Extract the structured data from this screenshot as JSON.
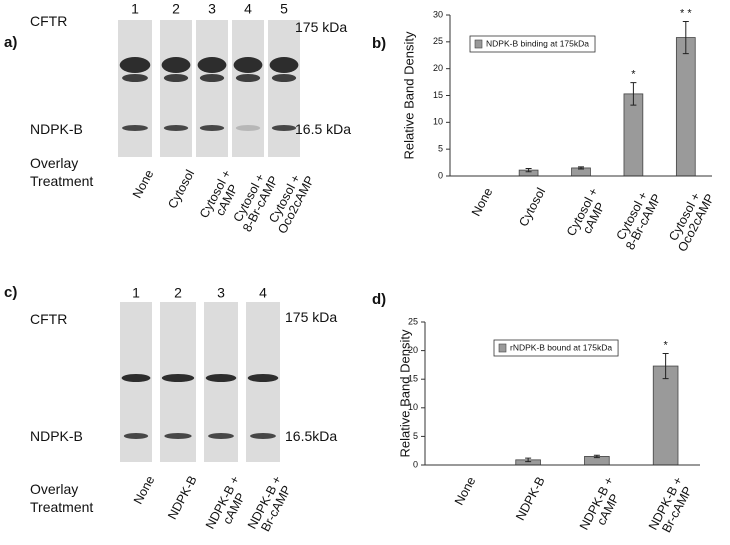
{
  "blots": {
    "a": {
      "panel": "a)",
      "rows": [
        "CFTR",
        "NDPK-B"
      ],
      "markers": [
        "175 kDa",
        "16.5 kDa"
      ],
      "lanes": [
        "1",
        "2",
        "3",
        "4",
        "5"
      ],
      "overlay": "Overlay\nTreatment",
      "treatments": [
        "None",
        "Cytosol",
        "Cytosol +\ncAMP",
        "Cytosol +\n8-Br-cAMP",
        "Cytosol +\nOco2cAMP"
      ]
    },
    "c": {
      "panel": "c)",
      "rows": [
        "CFTR",
        "NDPK-B"
      ],
      "markers": [
        "175 kDa",
        "16.5kDa"
      ],
      "lanes": [
        "1",
        "2",
        "3",
        "4"
      ],
      "overlay": "Overlay\nTreatment",
      "treatments": [
        "None",
        "NDPK-B",
        "NDPK-B +\ncAMP",
        "NDPK-B +\nBr-cAMP"
      ]
    }
  },
  "chart_data": [
    {
      "type": "bar",
      "panel": "b)",
      "ylabel": "Relative Band Density",
      "categories": [
        "None",
        "Cytosol",
        "Cytosol +\ncAMP",
        "Cytosol +\n8-Br-cAMP",
        "Cytosol +\nOco2cAMP"
      ],
      "series": [
        {
          "name": "NDPK-B binding at 175kDa",
          "color": "#9a9a9a",
          "values": [
            0,
            1.1,
            1.5,
            15.3,
            25.8
          ],
          "error": [
            null,
            0.3,
            0.2,
            2.1,
            3.0
          ],
          "bar_labels": [
            null,
            null,
            null,
            "*",
            "* *"
          ]
        }
      ],
      "ylim": [
        0,
        30
      ],
      "yticks": [
        0,
        5,
        10,
        15,
        20,
        25,
        30
      ],
      "grid": false
    },
    {
      "type": "bar",
      "panel": "d)",
      "ylabel": "Relative Band Density",
      "categories": [
        "None",
        "NDPK-B",
        "NDPK-B +\ncAMP",
        "NDPK-B +\nBr-cAMP"
      ],
      "series": [
        {
          "name": "rNDPK-B bound at 175kDa",
          "color": "#9a9a9a",
          "values": [
            0,
            0.9,
            1.5,
            17.3
          ],
          "error": [
            null,
            0.3,
            0.2,
            2.2
          ],
          "bar_labels": [
            null,
            null,
            null,
            "*"
          ]
        }
      ],
      "ylim": [
        0,
        25
      ],
      "yticks": [
        0,
        5,
        10,
        15,
        20,
        25
      ],
      "grid": false
    }
  ]
}
